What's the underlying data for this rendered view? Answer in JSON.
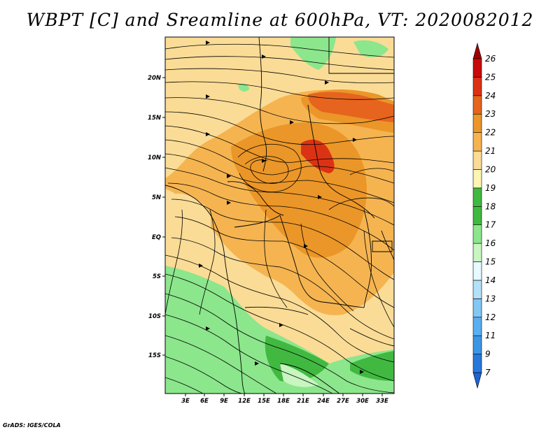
{
  "title": "WBPT [C] and Sreamline at 600hPa, VT: 2020082012",
  "credit": "GrADS: IGES/COLA",
  "map": {
    "lat_labels": [
      "20N",
      "15N",
      "10N",
      "5N",
      "EQ",
      "5S",
      "10S",
      "15S"
    ],
    "lon_labels": [
      "3E",
      "6E",
      "9E",
      "12E",
      "15E",
      "18E",
      "21E",
      "24E",
      "27E",
      "30E",
      "33E"
    ]
  },
  "colorbar": {
    "labels": [
      "7",
      "9",
      "11",
      "12",
      "13",
      "14",
      "15",
      "16",
      "17",
      "18",
      "19",
      "20",
      "21",
      "22",
      "23",
      "24",
      "25",
      "26"
    ],
    "colors": [
      "#1e64d2",
      "#2878dc",
      "#3c96e6",
      "#5aaff0",
      "#82c8f5",
      "#b4e1fa",
      "#e6faff",
      "#c8f5c0",
      "#8ce68c",
      "#41b941",
      "#fff5b4",
      "#fadc96",
      "#f5b450",
      "#eb9628",
      "#e6641e",
      "#dc3214",
      "#c80a0a",
      "#a00000"
    ]
  }
}
